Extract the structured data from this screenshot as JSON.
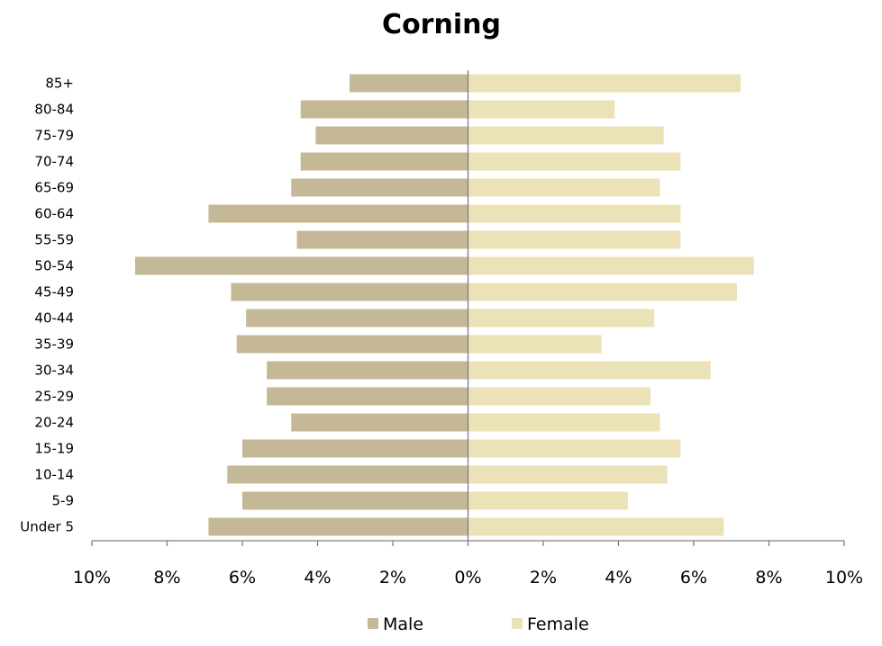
{
  "chart_data": {
    "type": "bar",
    "orientation": "horizontal",
    "title": "Corning",
    "categories": [
      "Under 5",
      "5-9",
      "10-14",
      "15-19",
      "20-24",
      "25-29",
      "30-34",
      "35-39",
      "40-44",
      "45-49",
      "50-54",
      "55-59",
      "60-64",
      "65-69",
      "70-74",
      "75-79",
      "80-84",
      "85+"
    ],
    "series": [
      {
        "name": "Male",
        "color": "#c4b896",
        "values": [
          6.9,
          6.0,
          6.4,
          6.0,
          4.7,
          5.35,
          5.35,
          6.15,
          5.9,
          6.3,
          8.85,
          4.55,
          6.9,
          4.7,
          4.45,
          4.05,
          4.45,
          3.15
        ]
      },
      {
        "name": "Female",
        "color": "#ebe2b8",
        "values": [
          6.8,
          4.25,
          5.3,
          5.65,
          5.1,
          4.85,
          6.45,
          3.55,
          4.95,
          7.15,
          7.6,
          5.65,
          5.65,
          5.1,
          5.65,
          5.2,
          3.9,
          7.25
        ]
      }
    ],
    "xlim": [
      -10,
      10
    ],
    "x_ticks": [
      "10%",
      "8%",
      "6%",
      "4%",
      "2%",
      "0%",
      "2%",
      "4%",
      "6%",
      "8%",
      "10%"
    ],
    "unit": "%",
    "grid": false,
    "legend_position": "bottom",
    "axis_color": "#7f7f7f"
  }
}
